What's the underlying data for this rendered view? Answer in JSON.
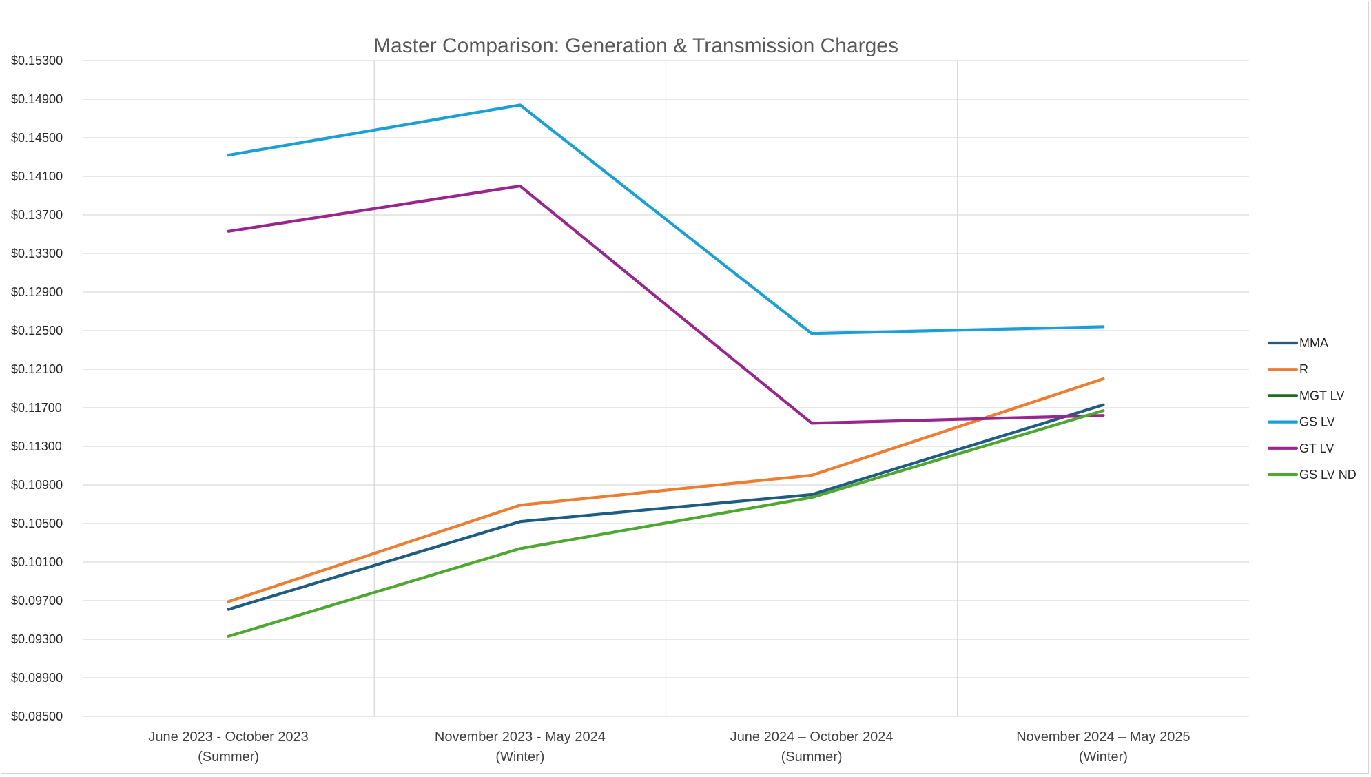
{
  "chart_data": {
    "type": "line",
    "title": "Master Comparison: Generation & Transmission Charges",
    "xlabel": "",
    "ylabel": "",
    "categories": [
      [
        "June 2023 - October 2023",
        "(Summer)"
      ],
      [
        "November 2023 - May 2024",
        "(Winter)"
      ],
      [
        "June 2024 – October 2024",
        "(Summer)"
      ],
      [
        "November 2024 – May 2025",
        "(Winter)"
      ]
    ],
    "ylim": [
      0.085,
      0.153
    ],
    "yticks": [
      0.085,
      0.089,
      0.093,
      0.097,
      0.101,
      0.105,
      0.109,
      0.113,
      0.117,
      0.121,
      0.125,
      0.129,
      0.133,
      0.137,
      0.141,
      0.145,
      0.149,
      0.153
    ],
    "ytick_labels": [
      "$0.08500",
      "$0.08900",
      "$0.09300",
      "$0.09700",
      "$0.10100",
      "$0.10500",
      "$0.10900",
      "$0.11300",
      "$0.11700",
      "$0.12100",
      "$0.12500",
      "$0.12900",
      "$0.13300",
      "$0.13700",
      "$0.14100",
      "$0.14500",
      "$0.14900",
      "$0.15300"
    ],
    "grid": true,
    "legend_position": "right",
    "series": [
      {
        "name": "MMA",
        "color": "#1f5c82",
        "values": [
          0.0961,
          0.1052,
          0.108,
          0.1173
        ]
      },
      {
        "name": "R",
        "color": "#ed7d31",
        "values": [
          0.0969,
          0.1069,
          0.11,
          0.12
        ]
      },
      {
        "name": "MGT LV",
        "color": "#1e6b23",
        "values": [
          null,
          null,
          null,
          null
        ]
      },
      {
        "name": "GS LV",
        "color": "#1aa0d6",
        "values": [
          0.1432,
          0.1484,
          0.1247,
          0.1254
        ]
      },
      {
        "name": "GT LV",
        "color": "#99268f",
        "values": [
          0.1353,
          0.14,
          0.1154,
          0.1162
        ]
      },
      {
        "name": "GS LV ND",
        "color": "#4ea72e",
        "values": [
          0.0933,
          0.1024,
          0.1077,
          0.1167
        ]
      }
    ]
  }
}
